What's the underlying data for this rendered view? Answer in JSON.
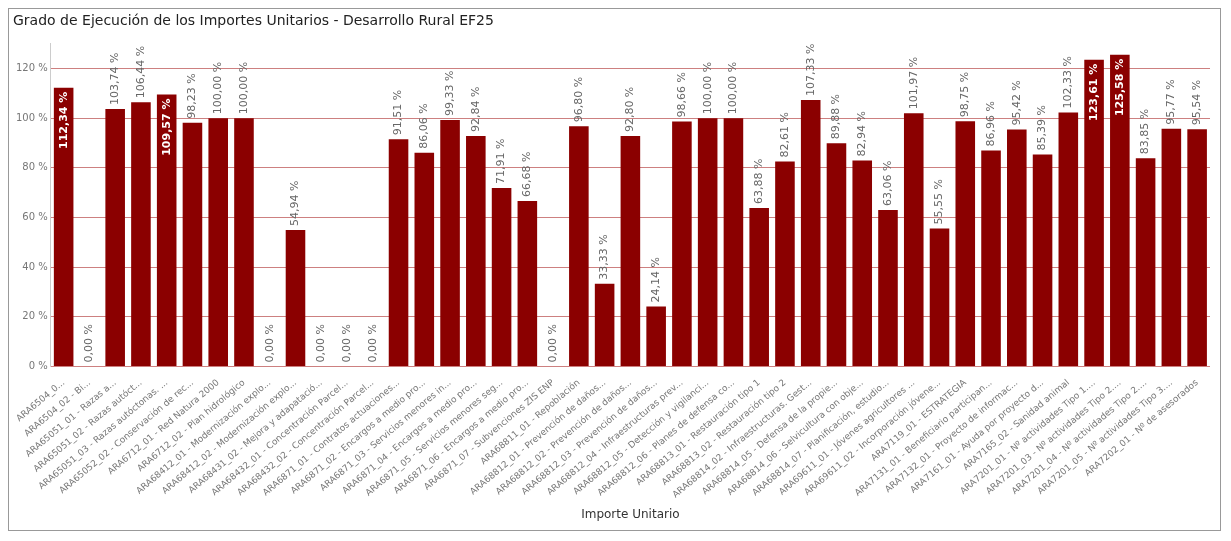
{
  "chart_data": {
    "type": "bar",
    "title": "Grado de Ejecución de los Importes Unitarios - Desarrollo Rural EF25",
    "xlabel": "Importe Unitario",
    "categories": [
      "ARA6504_0...",
      "ARA6504_02 - Bi...",
      "ARA65051_01 - Razas a...",
      "ARA65051_02 - Razas autóct...",
      "ARA65051_03 - Razas autóctonas. ...",
      "ARA65052_02 - Conservación de rec...",
      "ARA6712_01 - Red Natura 2000",
      "ARA6712_02 - Plan hidrológico",
      "ARA68412_01 - Modernización explo...",
      "ARA68412_02 - Modernización explo...",
      "ARA68431_02 - Mejora y adapatació...",
      "ARA68432_01 - Concentración Parcel...",
      "ARA68432_02 - Concentración Parcel...",
      "ARA6871_01 - Contratos actuaciones...",
      "ARA6871_02 - Encargos a medio pro...",
      "ARA6871_03 - Servicios menores in...",
      "ARA6871_04 - Encargos a medio pro...",
      "ARA6871_05 - Servicios menores seg...",
      "ARA6871_06 - Encargos a medio pro...",
      "ARA6871_07 - Subvenciones ZIS ENP",
      "ARA68811_01 - Repoblación",
      "ARA68812_01 - Prevención de daños...",
      "ARA68812_02 - Prevención de daños...",
      "ARA68812_03 - Prevención de daños...",
      "ARA68812_04 - Infraestructuras prev...",
      "ARA68812_05 - Detección y vigilanci...",
      "ARA68812_06 - Planes de defensa co...",
      "ARA68813_01 - Restauración tipo 1",
      "ARA68813_02 - Restauración tipo 2",
      "ARA68814_02 - Infraestructuras. Gest...",
      "ARA68814_05 - Defensa de la propie...",
      "ARA68814_06 - Selvicultura con obje...",
      "ARA68814_07 - Planificación, estudio...",
      "ARA69611_01 - Jóvenes agricultores ...",
      "ARA69611_02 - Incorporación jóvene...",
      "ARA7119_01 - ESTRATEGIA",
      "ARA7131_01 - Beneficiario participan...",
      "ARA7132_01 - Proyecto de informac...",
      "ARA7161_01 - Ayuda por proyecto d...",
      "ARA7165_02 - Sanidad animal",
      "ARA7201_01 - Nº actividades Tipo 1....",
      "ARA7201_03 - Nº actividades Tipo 2....",
      "ARA7201_04 - Nº actividades Tipo 2....",
      "ARA7201_05 - Nº actividades Tipo 3....",
      "ARA7202_01 - Nº de asesorados"
    ],
    "values": [
      112.34,
      0,
      103.74,
      106.44,
      109.57,
      98.23,
      100,
      100,
      0,
      54.94,
      0,
      0,
      0,
      91.51,
      86.06,
      99.33,
      92.84,
      71.91,
      66.68,
      0,
      96.8,
      33.33,
      92.8,
      24.14,
      98.66,
      100,
      100,
      63.88,
      82.61,
      107.33,
      89.88,
      82.94,
      63.06,
      101.97,
      55.55,
      98.75,
      86.96,
      95.42,
      85.39,
      102.33,
      123.61,
      125.58,
      83.85,
      95.77,
      95.54
    ],
    "value_labels": [
      "112,34 %",
      "0,00 %",
      "103,74 %",
      "106,44 %",
      "109,57 %",
      "98,23 %",
      "100,00 %",
      "100,00 %",
      "0,00 %",
      "54,94 %",
      "0,00 %",
      "0,00 %",
      "0,00 %",
      "91,51 %",
      "86,06 %",
      "99,33 %",
      "92,84 %",
      "71,91 %",
      "66,68 %",
      "0,00 %",
      "96,80 %",
      "33,33 %",
      "92,80 %",
      "24,14 %",
      "98,66 %",
      "100,00 %",
      "100,00 %",
      "63,88 %",
      "82,61 %",
      "107,33 %",
      "89,88 %",
      "82,94 %",
      "63,06 %",
      "101,97 %",
      "55,55 %",
      "98,75 %",
      "86,96 %",
      "95,42 %",
      "85,39 %",
      "102,33 %",
      "123,61 %",
      "125,58 %",
      "83,85 %",
      "95,77 %",
      "95,54 %"
    ],
    "color": "#8b0000",
    "ylim": [
      0,
      130
    ],
    "yticks": [
      {
        "value": 0,
        "label": "0 %"
      },
      {
        "value": 20,
        "label": "20 %"
      },
      {
        "value": 40,
        "label": "40 %"
      },
      {
        "value": 60,
        "label": "60 %"
      },
      {
        "value": 80,
        "label": "80 %"
      },
      {
        "value": 100,
        "label": "100 %"
      },
      {
        "value": 120,
        "label": "120 %"
      }
    ],
    "grid": "y",
    "legend": false
  }
}
